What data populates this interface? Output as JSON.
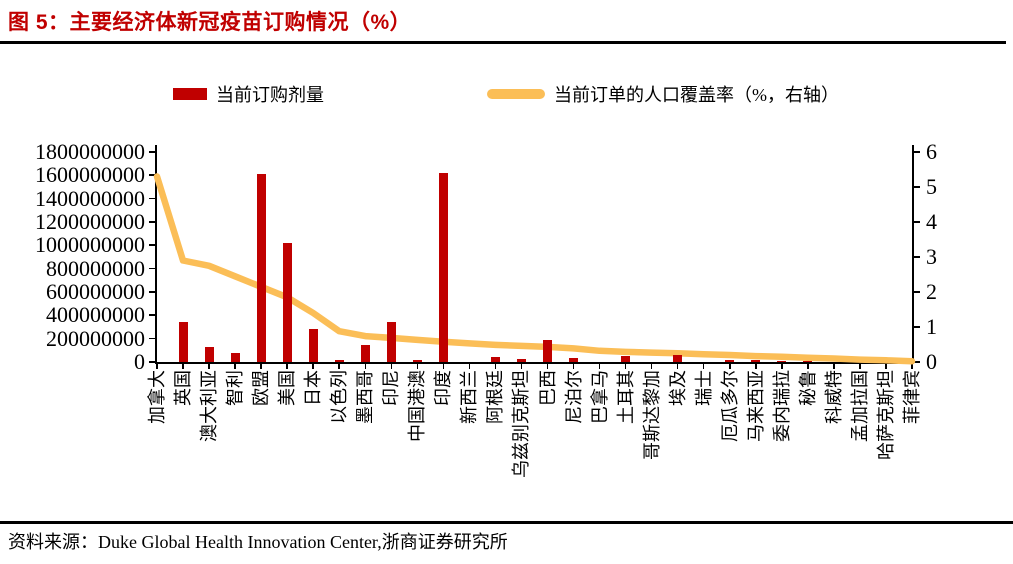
{
  "header": {
    "title": "图 5：主要经济体新冠疫苗订购情况（%）",
    "title_color": "#C00000"
  },
  "legend": {
    "bar": {
      "label": "当前订购剂量",
      "color": "#C00000"
    },
    "line": {
      "label": "当前订单的人口覆盖率（%，右轴）",
      "color": "#FBBE57"
    }
  },
  "chart_data": {
    "type": "bar+line combo",
    "title": "主要经济体新冠疫苗订购情况",
    "grid": false,
    "legend_position": "top",
    "categories": [
      "加拿大",
      "英国",
      "澳大利亚",
      "智利",
      "欧盟",
      "美国",
      "日本",
      "以色列",
      "墨西哥",
      "印尼",
      "中国港澳",
      "印度",
      "新西兰",
      "阿根廷",
      "乌兹别克斯坦",
      "巴西",
      "尼泊尔",
      "巴拿马",
      "土耳其",
      "哥斯达黎加",
      "埃及",
      "瑞士",
      "厄瓜多尔",
      "马来西亚",
      "委内瑞拉",
      "秘鲁",
      "科威特",
      "孟加拉国",
      "哈萨克斯坦",
      "菲律宾"
    ],
    "series": [
      {
        "name": "当前订购剂量",
        "type": "bar",
        "axis": "left",
        "color": "#C00000",
        "values": [
          null,
          345000000,
          130000000,
          80000000,
          1610000000,
          1020000000,
          285000000,
          20000000,
          150000000,
          345000000,
          15000000,
          1620000000,
          null,
          40000000,
          30000000,
          190000000,
          33000000,
          null,
          50000000,
          null,
          57000000,
          null,
          17000000,
          15000000,
          10000000,
          10000000,
          null,
          null,
          null,
          null
        ]
      },
      {
        "name": "当前订单的人口覆盖率（%，右轴）",
        "type": "line",
        "axis": "right",
        "color": "#FBBE57",
        "values": [
          5.3,
          2.9,
          2.75,
          2.45,
          2.15,
          1.85,
          1.4,
          0.88,
          0.74,
          0.69,
          0.63,
          0.58,
          0.53,
          0.49,
          0.46,
          0.43,
          0.39,
          0.32,
          0.29,
          0.27,
          0.25,
          0.22,
          0.2,
          0.17,
          0.15,
          0.12,
          0.1,
          0.07,
          0.05,
          0.02
        ]
      }
    ],
    "left_axis": {
      "min": 0,
      "max": 1800000000,
      "step": 200000000,
      "tick_labels": [
        "0",
        "200000000",
        "400000000",
        "600000000",
        "800000000",
        "1000000000",
        "1200000000",
        "1400000000",
        "1600000000",
        "1800000000"
      ]
    },
    "right_axis": {
      "min": 0,
      "max": 6,
      "step": 1,
      "tick_labels": [
        "0",
        "1",
        "2",
        "3",
        "4",
        "5",
        "6"
      ]
    }
  },
  "footer": {
    "source": "资料来源：Duke Global Health Innovation Center,浙商证券研究所"
  }
}
